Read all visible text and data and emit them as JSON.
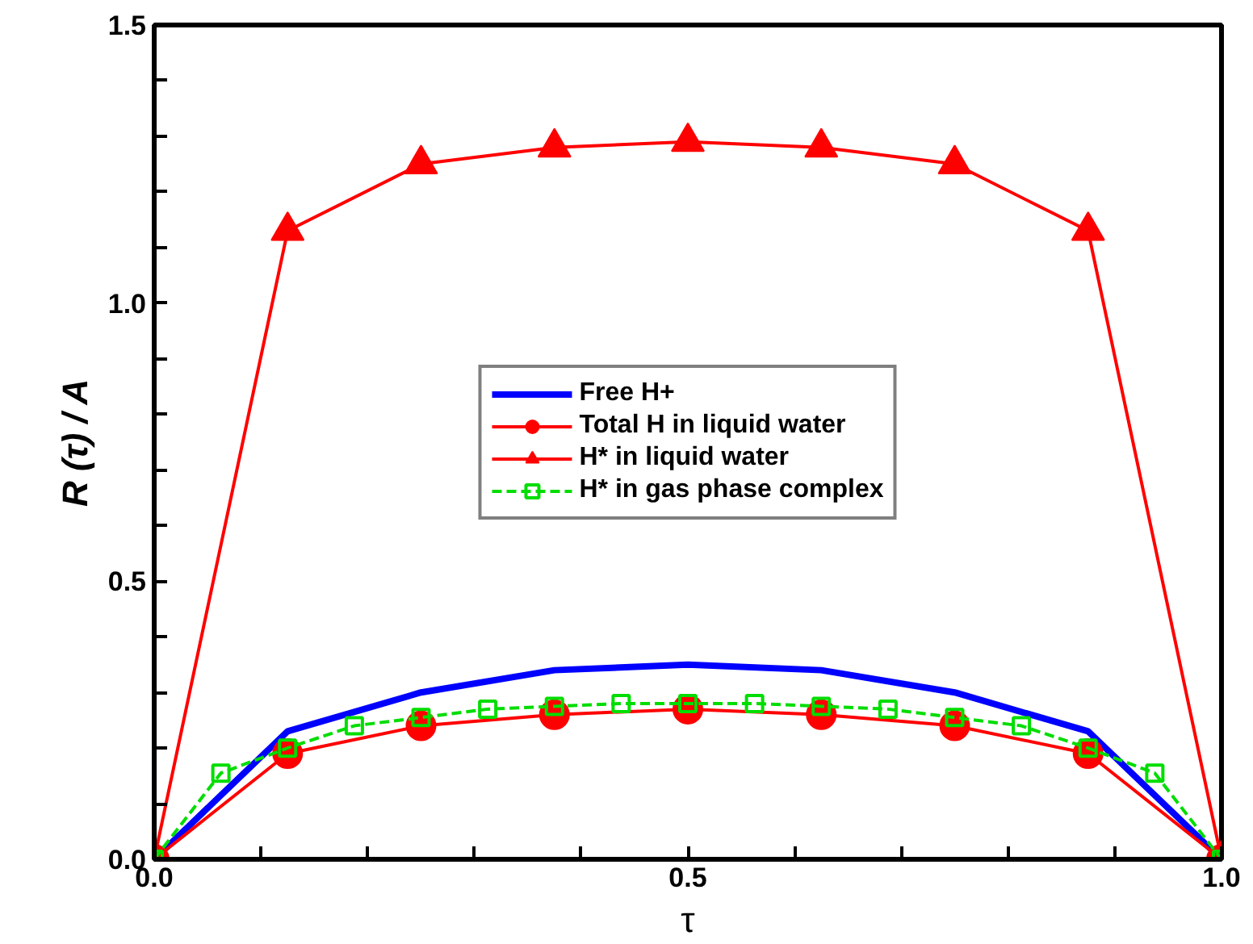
{
  "chart_data": {
    "type": "line",
    "xlabel": "τ",
    "ylabel": "R (τ) / A",
    "xlim": [
      0,
      1
    ],
    "ylim": [
      0,
      1.5
    ],
    "xticks": [
      {
        "value": 0,
        "label": "0.0"
      },
      {
        "value": 0.1,
        "label": null
      },
      {
        "value": 0.2,
        "label": null
      },
      {
        "value": 0.3,
        "label": null
      },
      {
        "value": 0.4,
        "label": null
      },
      {
        "value": 0.5,
        "label": "0.5"
      },
      {
        "value": 0.6,
        "label": null
      },
      {
        "value": 0.7,
        "label": null
      },
      {
        "value": 0.8,
        "label": null
      },
      {
        "value": 0.9,
        "label": null
      },
      {
        "value": 1,
        "label": "1.0"
      }
    ],
    "yticks": [
      {
        "value": 0,
        "label": "0.0"
      },
      {
        "value": 0.1,
        "label": null
      },
      {
        "value": 0.2,
        "label": null
      },
      {
        "value": 0.3,
        "label": null
      },
      {
        "value": 0.4,
        "label": null
      },
      {
        "value": 0.5,
        "label": "0.5"
      },
      {
        "value": 0.6,
        "label": null
      },
      {
        "value": 0.7,
        "label": null
      },
      {
        "value": 0.8,
        "label": null
      },
      {
        "value": 0.9,
        "label": null
      },
      {
        "value": 1,
        "label": "1.0"
      },
      {
        "value": 1.1,
        "label": null
      },
      {
        "value": 1.2,
        "label": null
      },
      {
        "value": 1.3,
        "label": null
      },
      {
        "value": 1.4,
        "label": null
      },
      {
        "value": 1.5,
        "label": "1.5"
      }
    ],
    "grid": false,
    "legend": "center",
    "series": [
      {
        "name": "Free H+",
        "color": "#0000ff",
        "marker": "none",
        "line_style": "solid",
        "x": [
          0,
          0.125,
          0.25,
          0.375,
          0.5,
          0.625,
          0.75,
          0.875,
          1
        ],
        "values": [
          0,
          0.23,
          0.3,
          0.34,
          0.35,
          0.34,
          0.3,
          0.23,
          0
        ]
      },
      {
        "name": "Total H in liquid water",
        "color": "#ff0000",
        "marker": "circle",
        "line_style": "solid",
        "x": [
          0,
          0.125,
          0.25,
          0.375,
          0.5,
          0.625,
          0.75,
          0.875,
          1
        ],
        "values": [
          0,
          0.19,
          0.24,
          0.26,
          0.27,
          0.26,
          0.24,
          0.19,
          0
        ]
      },
      {
        "name": "H* in liquid water",
        "color": "#ff0000",
        "marker": "triangle",
        "line_style": "solid",
        "x": [
          0,
          0.125,
          0.25,
          0.375,
          0.5,
          0.625,
          0.75,
          0.875,
          1
        ],
        "values": [
          0,
          1.13,
          1.25,
          1.28,
          1.29,
          1.28,
          1.25,
          1.13,
          0
        ]
      },
      {
        "name": "H* in gas phase complex",
        "color": "#00dd00",
        "marker": "square",
        "line_style": "dashed",
        "x": [
          0,
          0.0625,
          0.125,
          0.1875,
          0.25,
          0.3125,
          0.375,
          0.4375,
          0.5,
          0.5625,
          0.625,
          0.6875,
          0.75,
          0.8125,
          0.875,
          0.9375,
          1
        ],
        "values": [
          0,
          0.155,
          0.2,
          0.24,
          0.255,
          0.27,
          0.275,
          0.28,
          0.28,
          0.28,
          0.275,
          0.27,
          0.255,
          0.24,
          0.2,
          0.155,
          0
        ]
      }
    ]
  }
}
